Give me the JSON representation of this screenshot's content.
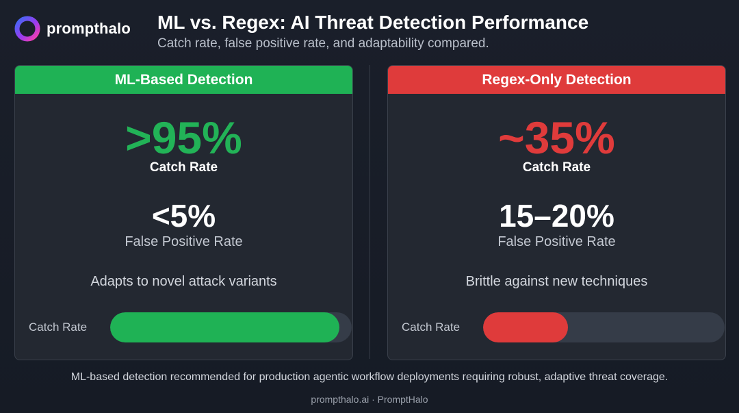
{
  "brand": {
    "name": "prompthalo",
    "logo_icon": "halo-ring-icon",
    "logo_colors": [
      "#3b6cf6",
      "#9b3bf0",
      "#ff3fa4"
    ]
  },
  "header": {
    "title": "ML vs. Regex: AI Threat Detection Performance",
    "subtitle": "Catch rate, false positive rate, and adaptability compared."
  },
  "colors": {
    "ml_accent": "#1fb255",
    "regex_accent": "#df3b3b",
    "background": "#1a1f2a",
    "panel": "#232831"
  },
  "chart_data": {
    "type": "bar",
    "categories": [
      "ML-Based Detection",
      "Regex-Only Detection"
    ],
    "series": [
      {
        "name": "Catch Rate",
        "values": [
          95,
          35
        ]
      }
    ],
    "ylim": [
      0,
      100
    ],
    "panels": [
      {
        "header": "ML-Based Detection",
        "catch_rate_text": ">95%",
        "catch_rate_label": "Catch Rate",
        "false_positive_text": "<5%",
        "false_positive_label": "False Positive Rate",
        "note": "Adapts to novel attack variants",
        "bar_label": "Catch Rate",
        "bar_value": 95
      },
      {
        "header": "Regex-Only Detection",
        "catch_rate_text": "~35%",
        "catch_rate_label": "Catch Rate",
        "false_positive_text": "15–20%",
        "false_positive_label": "False Positive Rate",
        "note": "Brittle against new techniques",
        "bar_label": "Catch Rate",
        "bar_value": 35
      }
    ]
  },
  "footer": {
    "note": "ML-based detection recommended for production agentic workflow deployments requiring robust, adaptive threat coverage.",
    "brand": "prompthalo.ai · PromptHalo"
  }
}
